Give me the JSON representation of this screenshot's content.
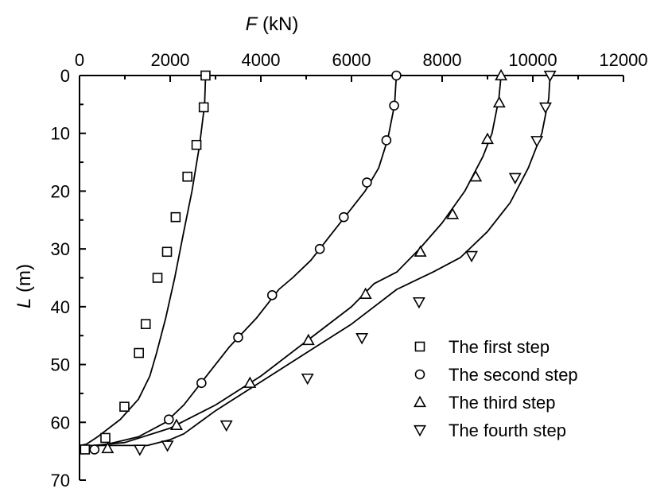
{
  "chart_data": {
    "type": "line",
    "xlabel_var": "F",
    "xlabel_unit": "(kN)",
    "ylabel_var": "L",
    "ylabel_unit": "(m)",
    "xlim": [
      0,
      12000
    ],
    "ylim": [
      0,
      70
    ],
    "x_axis_position": "top",
    "y_axis_inverted": true,
    "x_ticks": [
      0,
      2000,
      4000,
      6000,
      8000,
      10000,
      12000
    ],
    "y_ticks": [
      0,
      10,
      20,
      30,
      40,
      50,
      60,
      70
    ],
    "grid": false,
    "legend_position": "bottom-right",
    "series": [
      {
        "name": "The first step",
        "marker": "square",
        "curve": [
          [
            2780,
            0
          ],
          [
            2760,
            5
          ],
          [
            2650,
            12
          ],
          [
            2480,
            20
          ],
          [
            2300,
            27
          ],
          [
            2100,
            35
          ],
          [
            1900,
            42
          ],
          [
            1700,
            48
          ],
          [
            1550,
            52
          ],
          [
            1300,
            56
          ],
          [
            900,
            59.5
          ],
          [
            400,
            62.5
          ],
          [
            150,
            63.8
          ],
          [
            0,
            64
          ]
        ],
        "markers": [
          [
            2780,
            0
          ],
          [
            2740,
            5.5
          ],
          [
            2580,
            12
          ],
          [
            2380,
            17.5
          ],
          [
            2120,
            24.5
          ],
          [
            1930,
            30.5
          ],
          [
            1720,
            35
          ],
          [
            1460,
            43
          ],
          [
            1310,
            48
          ],
          [
            990,
            57.3
          ],
          [
            570,
            62.7
          ],
          [
            120,
            64.7
          ]
        ]
      },
      {
        "name": "The second step",
        "marker": "circle",
        "curve": [
          [
            6990,
            0
          ],
          [
            6950,
            5
          ],
          [
            6800,
            11
          ],
          [
            6600,
            16
          ],
          [
            6300,
            20
          ],
          [
            5900,
            24
          ],
          [
            5500,
            28
          ],
          [
            5100,
            32
          ],
          [
            4700,
            35
          ],
          [
            4400,
            37
          ],
          [
            3900,
            42
          ],
          [
            3300,
            47
          ],
          [
            2800,
            52
          ],
          [
            2300,
            57
          ],
          [
            1900,
            60
          ],
          [
            1300,
            62.5
          ],
          [
            500,
            64
          ],
          [
            0,
            64
          ]
        ],
        "markers": [
          [
            6990,
            0
          ],
          [
            6940,
            5.2
          ],
          [
            6770,
            11.2
          ],
          [
            6340,
            18.5
          ],
          [
            5830,
            24.5
          ],
          [
            5300,
            30
          ],
          [
            4250,
            38
          ],
          [
            3500,
            45.3
          ],
          [
            2690,
            53.2
          ],
          [
            1970,
            59.5
          ],
          [
            330,
            64.7
          ]
        ]
      },
      {
        "name": "The third step",
        "marker": "triangle-up",
        "curve": [
          [
            9300,
            0
          ],
          [
            9250,
            4
          ],
          [
            9100,
            10
          ],
          [
            8900,
            14
          ],
          [
            8500,
            20
          ],
          [
            8000,
            25.5
          ],
          [
            7500,
            30
          ],
          [
            7000,
            34
          ],
          [
            6500,
            36
          ],
          [
            6000,
            40
          ],
          [
            5000,
            46
          ],
          [
            4000,
            52
          ],
          [
            3000,
            57
          ],
          [
            2000,
            61
          ],
          [
            1000,
            63.5
          ],
          [
            300,
            64
          ],
          [
            0,
            64
          ]
        ],
        "markers": [
          [
            9300,
            0
          ],
          [
            9260,
            4.7
          ],
          [
            9000,
            11
          ],
          [
            8740,
            17.5
          ],
          [
            8230,
            24
          ],
          [
            7520,
            30.5
          ],
          [
            6310,
            37.8
          ],
          [
            5050,
            45.8
          ],
          [
            3760,
            53.2
          ],
          [
            2140,
            60.5
          ],
          [
            620,
            64.5
          ]
        ]
      },
      {
        "name": "The fourth step",
        "marker": "triangle-down",
        "curve": [
          [
            10380,
            0
          ],
          [
            10350,
            4
          ],
          [
            10200,
            10
          ],
          [
            9900,
            16
          ],
          [
            9500,
            22
          ],
          [
            9000,
            27
          ],
          [
            8400,
            31.5
          ],
          [
            7800,
            34
          ],
          [
            7400,
            35.5
          ],
          [
            7000,
            37
          ],
          [
            6000,
            43
          ],
          [
            5000,
            48
          ],
          [
            4000,
            53
          ],
          [
            3000,
            58
          ],
          [
            2300,
            62
          ],
          [
            2000,
            63
          ],
          [
            1500,
            64
          ],
          [
            0,
            64
          ]
        ],
        "markers": [
          [
            10380,
            0
          ],
          [
            10280,
            5.5
          ],
          [
            10090,
            11.3
          ],
          [
            9610,
            17.7
          ],
          [
            8650,
            31.2
          ],
          [
            7490,
            39.2
          ],
          [
            6230,
            45.4
          ],
          [
            5030,
            52.4
          ],
          [
            3240,
            60.5
          ],
          [
            1940,
            64
          ],
          [
            1330,
            64.7
          ]
        ]
      }
    ]
  }
}
